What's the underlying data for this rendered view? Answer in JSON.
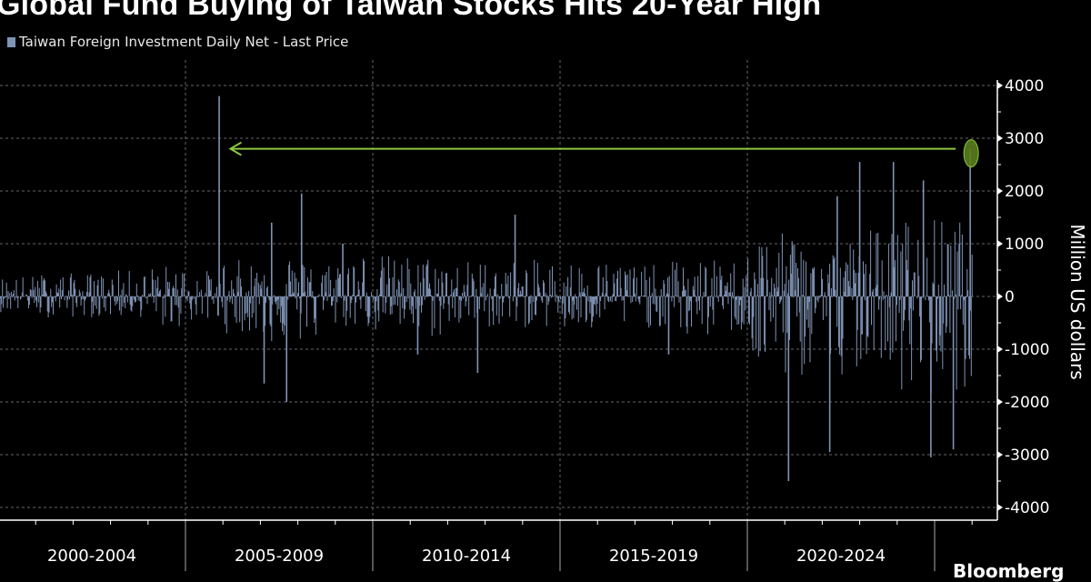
{
  "title": "Global Fund Buying of Taiwan Stocks Hits 20-Year High",
  "logo_text": "Bloomberg",
  "chart_data": {
    "type": "bar",
    "title": "Global Fund Buying of Taiwan Stocks Hits 20-Year High",
    "legend": {
      "position": "top-left",
      "entries": [
        {
          "name": "Taiwan Foreign Investment Daily Net - Last Price",
          "color": "#7f93b5"
        }
      ]
    },
    "series_color": "#7f93b5",
    "highlight_color": "#8dc63f",
    "ylabel": "Million US dollars",
    "ylim": [
      -4300,
      4500
    ],
    "yticks": [
      4000,
      3000,
      2000,
      1000,
      0,
      -1000,
      -2000,
      -3000,
      -4000
    ],
    "xlim": [
      2000.0,
      2026.3
    ],
    "x_categories": [
      "2000-2004",
      "2005-2009",
      "2010-2014",
      "2015-2019",
      "2020-2024"
    ],
    "grid": true,
    "yearly_typical_range": {
      "years": [
        2000,
        2001,
        2002,
        2003,
        2004,
        2005,
        2006,
        2007,
        2008,
        2009,
        2010,
        2011,
        2012,
        2013,
        2014,
        2015,
        2016,
        2017,
        2018,
        2019,
        2020,
        2021,
        2022,
        2023,
        2024,
        2025
      ],
      "max": [
        400,
        450,
        450,
        500,
        600,
        500,
        700,
        900,
        700,
        900,
        800,
        800,
        700,
        700,
        700,
        700,
        700,
        600,
        700,
        700,
        1200,
        1300,
        1000,
        1300,
        1500,
        1500
      ],
      "min": [
        -300,
        -400,
        -400,
        -400,
        -600,
        -500,
        -700,
        -900,
        -900,
        -600,
        -700,
        -800,
        -600,
        -600,
        -600,
        -700,
        -600,
        -600,
        -800,
        -700,
        -1500,
        -1600,
        -1500,
        -1200,
        -2000,
        -1800
      ]
    },
    "notable_values": [
      {
        "date": 2005.9,
        "value": 3800
      },
      {
        "date": 2007.1,
        "value": -1650
      },
      {
        "date": 2007.3,
        "value": 1400
      },
      {
        "date": 2007.7,
        "value": -2000
      },
      {
        "date": 2008.1,
        "value": 1950
      },
      {
        "date": 2009.2,
        "value": 1000
      },
      {
        "date": 2011.2,
        "value": -1100
      },
      {
        "date": 2012.8,
        "value": -1450
      },
      {
        "date": 2013.8,
        "value": 1550
      },
      {
        "date": 2017.9,
        "value": -1100
      },
      {
        "date": 2021.1,
        "value": -3500
      },
      {
        "date": 2022.2,
        "value": -2950
      },
      {
        "date": 2022.4,
        "value": 1900
      },
      {
        "date": 2023.0,
        "value": 2550
      },
      {
        "date": 2023.9,
        "value": 2550
      },
      {
        "date": 2024.7,
        "value": 2200
      },
      {
        "date": 2024.9,
        "value": -3050
      },
      {
        "date": 2025.5,
        "value": -2900
      },
      {
        "date": 2025.95,
        "value": 2800
      }
    ],
    "annotation": {
      "type": "arrow",
      "from_date": 2025.95,
      "to_date": 2006.2,
      "value": 2800,
      "highlighted_point": {
        "date": 2025.95,
        "value": 2800
      }
    }
  }
}
